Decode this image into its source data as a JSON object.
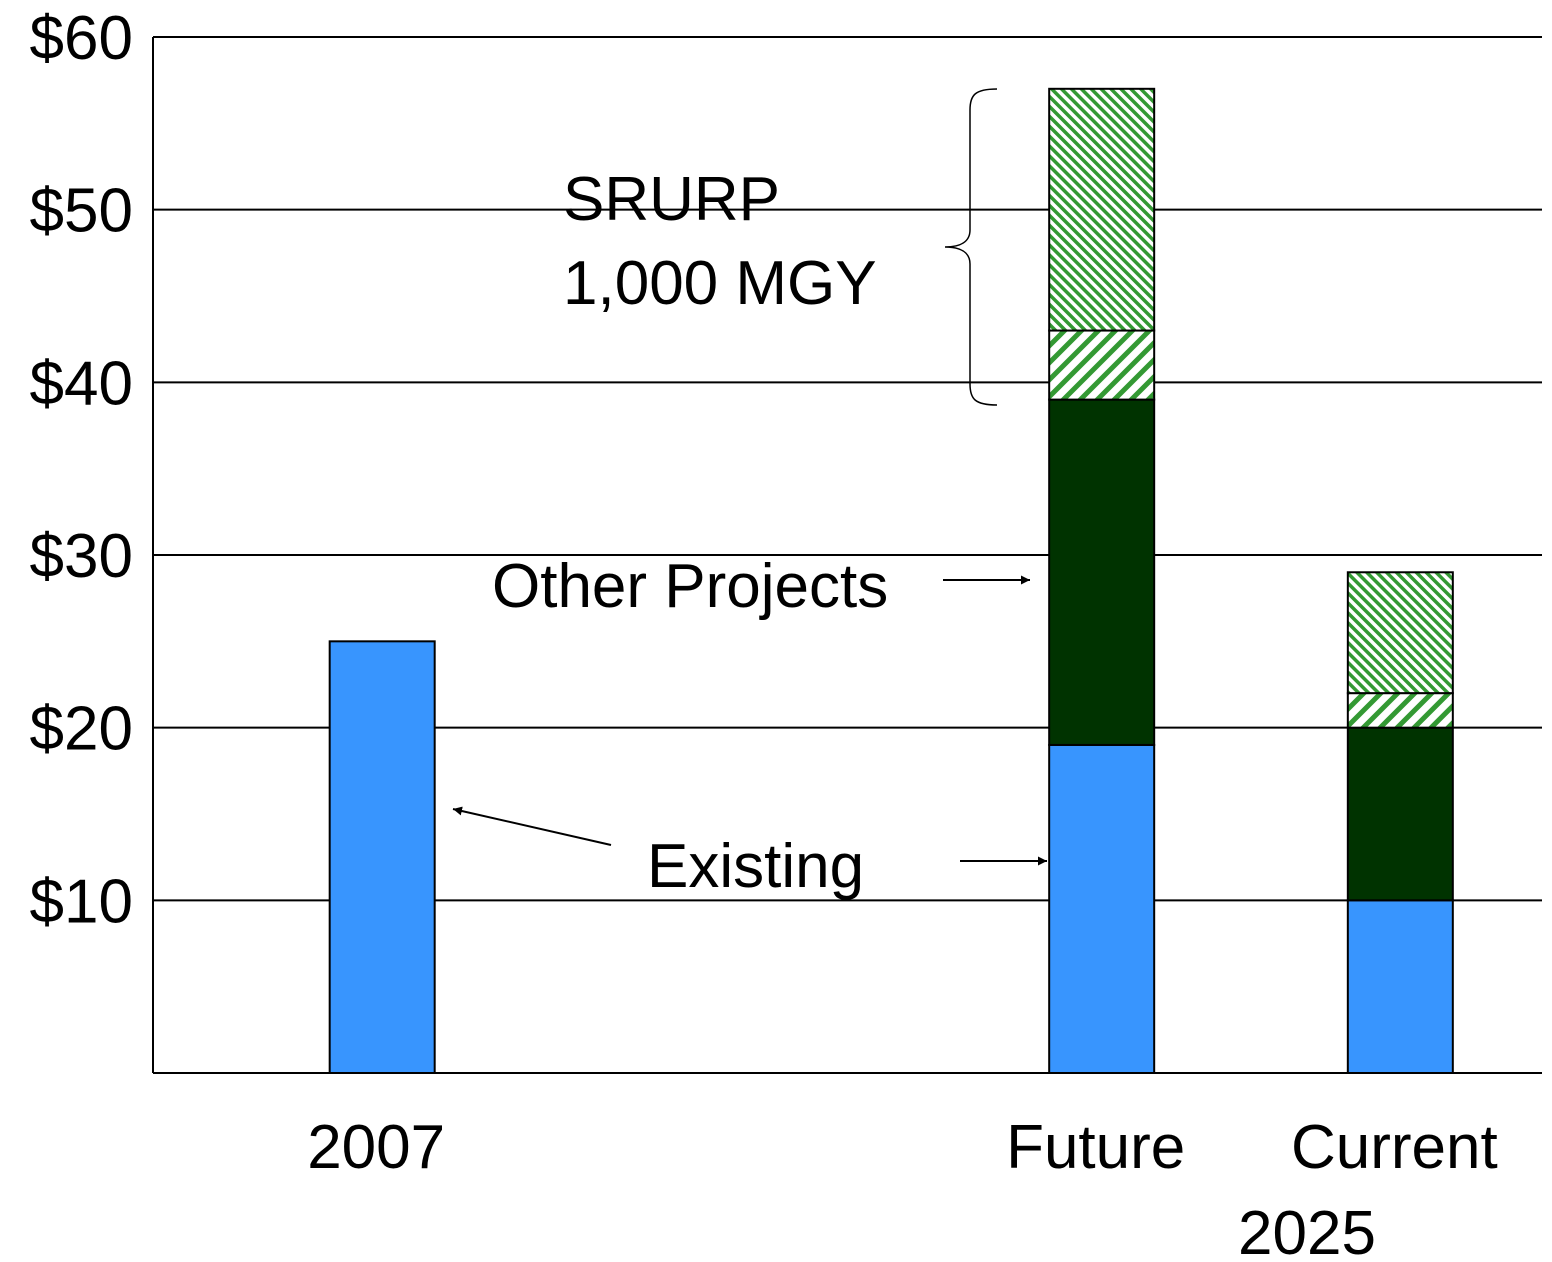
{
  "chart_data": {
    "type": "stacked_bar",
    "categories": [
      "2007",
      "Future",
      "Current"
    ],
    "x_group_label": "2025",
    "series": [
      {
        "name": "Existing",
        "color": "#3895fe",
        "values": [
          25,
          19,
          10
        ]
      },
      {
        "name": "Other Projects",
        "color": "#003300",
        "values": [
          null,
          20,
          10
        ]
      },
      {
        "color": "#339933",
        "hatch": "forward",
        "values": [
          null,
          4,
          2
        ]
      },
      {
        "color": "#339933",
        "hatch": "backward",
        "values": [
          null,
          14,
          7
        ]
      }
    ],
    "annotations": [
      "SRURP",
      "1,000 MGY"
    ],
    "ylim": [
      0,
      60
    ],
    "yticks": [
      {
        "value": 10,
        "label": "$10"
      },
      {
        "value": 20,
        "label": "$20"
      },
      {
        "value": 30,
        "label": "$30"
      },
      {
        "value": 40,
        "label": "$40"
      },
      {
        "value": 50,
        "label": "$50"
      },
      {
        "value": 60,
        "label": "$60"
      }
    ],
    "grid": true
  }
}
